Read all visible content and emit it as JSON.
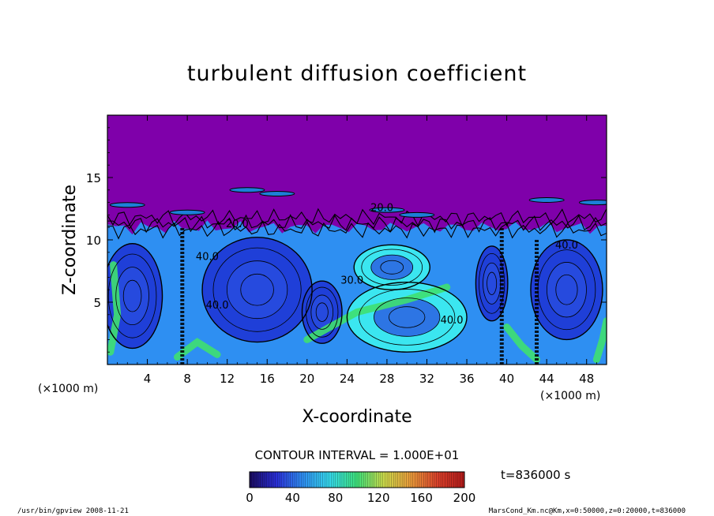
{
  "chart_data": {
    "type": "heatmap",
    "title": "turbulent diffusion coefficient",
    "xlabel": "X-coordinate",
    "ylabel": "Z-coordinate",
    "x_unit": "(×1000 m)",
    "y_unit": "(×1000 m)",
    "xlim": [
      0,
      50
    ],
    "ylim": [
      0,
      20
    ],
    "x_ticks": [
      4,
      8,
      12,
      16,
      20,
      24,
      28,
      32,
      36,
      40,
      44,
      48
    ],
    "y_ticks": [
      5,
      10,
      15
    ],
    "contour_interval": "CONTOUR INTERVAL = 1.000E+01",
    "contour_labels": [
      {
        "text": "20.0",
        "x": 27.5,
        "z": 12.3
      },
      {
        "text": "40.0",
        "x": 10.0,
        "z": 8.4
      },
      {
        "text": "30.0",
        "x": 24.5,
        "z": 6.5
      },
      {
        "text": "40.0",
        "x": 11.0,
        "z": 4.5
      },
      {
        "text": "40.0",
        "x": 34.5,
        "z": 3.3
      },
      {
        "text": "40.0",
        "x": 46.0,
        "z": 9.3
      },
      {
        "text": "20.0",
        "x": 13.0,
        "z": 11.0
      }
    ],
    "colorbar": {
      "ticks": [
        0,
        40,
        80,
        120,
        160,
        200
      ],
      "range": [
        0,
        200
      ],
      "colors": [
        "#1a0b5e",
        "#2a2fd6",
        "#2f8ff0",
        "#35d8e8",
        "#3ee07a",
        "#c9d84a",
        "#e89a3a",
        "#d8402a",
        "#b01a1a"
      ]
    },
    "field_colors": {
      "top_region": "#7f00aa",
      "low_values": "#1f3fd8",
      "mid_values": "#2e8ff2",
      "high_values": "#3be6f0",
      "peak_values": "#3fe070"
    },
    "time_label": "t=836000 s"
  },
  "footer": {
    "left": "/usr/bin/gpview  2008-11-21",
    "right": "MarsCond_Km.nc@Km,x=0:50000,z=0:20000,t=836000"
  }
}
